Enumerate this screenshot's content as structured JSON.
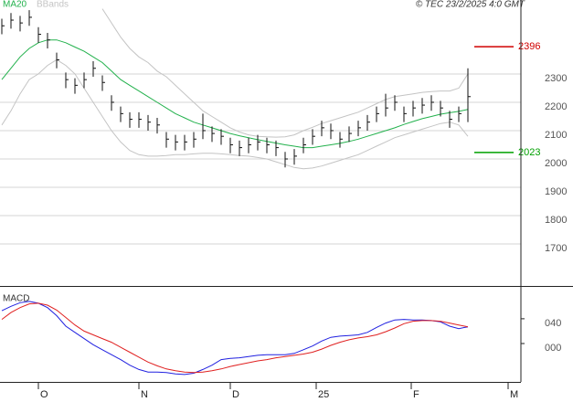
{
  "chart_data": [
    {
      "type": "ohlc",
      "source": "© TEC 23/2/2025 4:0 GMT",
      "xlim": [
        -0.2,
        56.8
      ],
      "ylim": [
        1555,
        2561
      ],
      "yticks": [
        1700,
        1800,
        1900,
        2000,
        2100,
        2200,
        2300
      ],
      "grid": true,
      "bar_color": "#111",
      "close": [
        2470,
        2490,
        2480,
        2500,
        2440,
        2420,
        2350,
        2280,
        2260,
        2280,
        2320,
        2270,
        2200,
        2160,
        2140,
        2140,
        2130,
        2120,
        2070,
        2060,
        2060,
        2070,
        2100,
        2090,
        2080,
        2050,
        2040,
        2050,
        2060,
        2050,
        2040,
        2000,
        2010,
        2050,
        2080,
        2110,
        2100,
        2070,
        2090,
        2110,
        2130,
        2160,
        2180,
        2200,
        2160,
        2180,
        2190,
        2200,
        2180,
        2140,
        2160,
        2220
      ],
      "high": [
        2495,
        2515,
        2505,
        2525,
        2465,
        2445,
        2375,
        2305,
        2285,
        2305,
        2345,
        2295,
        2225,
        2185,
        2165,
        2165,
        2155,
        2145,
        2095,
        2085,
        2085,
        2095,
        2160,
        2115,
        2105,
        2075,
        2065,
        2075,
        2085,
        2075,
        2065,
        2025,
        2035,
        2075,
        2105,
        2135,
        2125,
        2095,
        2115,
        2135,
        2155,
        2185,
        2230,
        2225,
        2185,
        2205,
        2215,
        2225,
        2205,
        2170,
        2185,
        2320
      ],
      "low": [
        2440,
        2460,
        2450,
        2470,
        2410,
        2390,
        2320,
        2250,
        2230,
        2250,
        2290,
        2240,
        2170,
        2130,
        2110,
        2110,
        2100,
        2090,
        2040,
        2030,
        2030,
        2040,
        2070,
        2060,
        2050,
        2020,
        2010,
        2020,
        2030,
        2020,
        2010,
        1970,
        1980,
        2020,
        2050,
        2080,
        2070,
        2040,
        2060,
        2080,
        2100,
        2130,
        2150,
        2170,
        2130,
        2150,
        2160,
        2170,
        2150,
        2110,
        2130,
        2130
      ],
      "series": [
        {
          "name": "MA20",
          "color": "#22b14c",
          "values": [
            2280,
            2320,
            2360,
            2390,
            2410,
            2420,
            2420,
            2410,
            2395,
            2380,
            2360,
            2340,
            2310,
            2280,
            2260,
            2240,
            2220,
            2200,
            2180,
            2160,
            2145,
            2130,
            2120,
            2110,
            2100,
            2090,
            2082,
            2075,
            2068,
            2062,
            2056,
            2050,
            2045,
            2040,
            2040,
            2045,
            2050,
            2055,
            2062,
            2070,
            2080,
            2090,
            2100,
            2110,
            2122,
            2132,
            2142,
            2150,
            2158,
            2163,
            2168,
            2175
          ]
        },
        {
          "name": "BBands",
          "color": "#c4c4c4",
          "upper": [
            null,
            null,
            null,
            null,
            null,
            null,
            null,
            null,
            null,
            null,
            null,
            2530,
            2480,
            2430,
            2390,
            2360,
            2340,
            2310,
            2290,
            2260,
            2230,
            2200,
            2170,
            2150,
            2130,
            2110,
            2095,
            2085,
            2080,
            2078,
            2077,
            2078,
            2085,
            2100,
            2112,
            2125,
            2135,
            2145,
            2155,
            2165,
            2180,
            2195,
            2210,
            2220,
            2225,
            2230,
            2235,
            2238,
            2240,
            2240,
            2250,
            2300
          ],
          "lower": [
            2120,
            2170,
            2230,
            2280,
            2300,
            2330,
            2350,
            2330,
            2300,
            2250,
            2200,
            2150,
            2100,
            2060,
            2030,
            2015,
            2010,
            2010,
            2012,
            2015,
            2015,
            2018,
            2020,
            2020,
            2018,
            2015,
            2012,
            2010,
            2005,
            2000,
            1990,
            1980,
            1970,
            1965,
            1968,
            1975,
            1985,
            1995,
            2005,
            2015,
            2030,
            2045,
            2060,
            2075,
            2085,
            2095,
            2105,
            2115,
            2125,
            2130,
            2120,
            2080
          ]
        }
      ],
      "levels": [
        {
          "value": 2396,
          "color": "#d00000"
        },
        {
          "value": 2023,
          "color": "#00a000"
        }
      ]
    },
    {
      "type": "line",
      "title": "MACD",
      "xlim": [
        -0.2,
        56.8
      ],
      "ylim": [
        -62,
        90
      ],
      "yticks": [
        {
          "value": 40,
          "label": "040"
        },
        {
          "value": 0,
          "label": "000"
        }
      ],
      "xticks": [
        {
          "value": 4,
          "label": "O"
        },
        {
          "value": 15,
          "label": "N"
        },
        {
          "value": 25,
          "label": "D"
        },
        {
          "value": 34.4,
          "label": "25"
        },
        {
          "value": 44.8,
          "label": "F"
        },
        {
          "value": 55.4,
          "label": "M"
        }
      ],
      "series": [
        {
          "color": "#2020e0",
          "values": [
            53,
            60,
            66,
            68,
            65,
            58,
            45,
            28,
            18,
            8,
            -2,
            -10,
            -18,
            -26,
            -35,
            -42,
            -46,
            -46,
            -47,
            -49,
            -50,
            -48,
            -42,
            -35,
            -26,
            -24,
            -23,
            -21,
            -19,
            -18,
            -18,
            -18,
            -16,
            -10,
            -4,
            4,
            10,
            12,
            13,
            14,
            18,
            26,
            33,
            38,
            39,
            38,
            38,
            37,
            35,
            28,
            24,
            27
          ]
        },
        {
          "color": "#e02020",
          "values": [
            39,
            50,
            58,
            64,
            65,
            62,
            54,
            42,
            30,
            20,
            14,
            8,
            2,
            -6,
            -14,
            -22,
            -30,
            -36,
            -41,
            -44,
            -46,
            -47,
            -46,
            -44,
            -41,
            -37,
            -34,
            -31,
            -28,
            -26,
            -23,
            -21,
            -19,
            -17,
            -14,
            -9,
            -3,
            2,
            6,
            9,
            11,
            14,
            19,
            25,
            32,
            36,
            37,
            37,
            36,
            33,
            30,
            27
          ]
        }
      ]
    }
  ]
}
